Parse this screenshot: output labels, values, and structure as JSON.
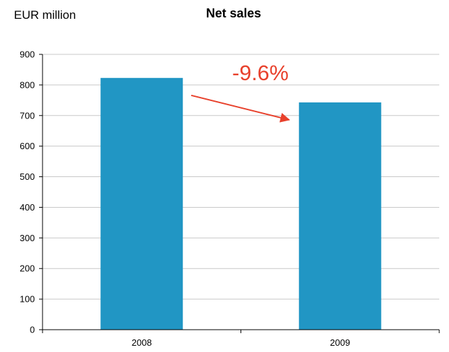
{
  "chart_data": {
    "type": "bar",
    "title": "Net sales",
    "unit_label": "EUR million",
    "xlabel": "",
    "ylabel": "",
    "categories": [
      "2008",
      "2009"
    ],
    "values": [
      823,
      743
    ],
    "ylim": [
      0,
      900
    ],
    "yticks": [
      0,
      100,
      200,
      300,
      400,
      500,
      600,
      700,
      800,
      900
    ],
    "grid": true,
    "legend": "none",
    "bar_color": "#2196c4",
    "annotation": {
      "text": "-9.6%",
      "color": "#e8412c",
      "from": "2008",
      "to": "2009"
    }
  }
}
